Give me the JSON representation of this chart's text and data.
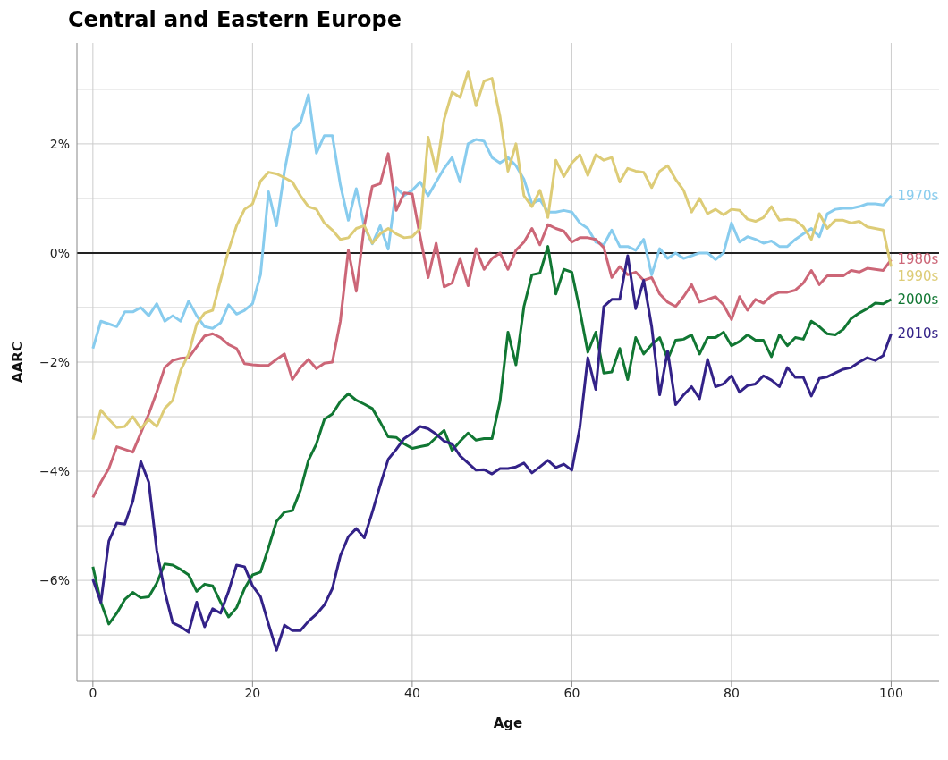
{
  "chart_data": {
    "type": "line",
    "title": "Central and Eastern Europe",
    "xlabel": "Age",
    "ylabel": "AARC",
    "x": [
      0,
      1,
      2,
      3,
      4,
      5,
      6,
      7,
      8,
      9,
      10,
      11,
      12,
      13,
      14,
      15,
      16,
      17,
      18,
      19,
      20,
      21,
      22,
      23,
      24,
      25,
      26,
      27,
      28,
      29,
      30,
      31,
      32,
      33,
      34,
      35,
      36,
      37,
      38,
      39,
      40,
      41,
      42,
      43,
      44,
      45,
      46,
      47,
      48,
      49,
      50,
      51,
      52,
      53,
      54,
      55,
      56,
      57,
      58,
      59,
      60,
      61,
      62,
      63,
      64,
      65,
      66,
      67,
      68,
      69,
      70,
      71,
      72,
      73,
      74,
      75,
      76,
      77,
      78,
      79,
      80,
      81,
      82,
      83,
      84,
      85,
      86,
      87,
      88,
      89,
      90,
      91,
      92,
      93,
      94,
      95,
      96,
      97,
      98,
      99,
      100
    ],
    "xlim": [
      -2,
      106
    ],
    "xticks": [
      0,
      20,
      40,
      60,
      80,
      100
    ],
    "ylim": [
      -7.85,
      3.85
    ],
    "yticks": [
      {
        "value": -7,
        "label": null
      },
      {
        "value": -6,
        "label": "−6%"
      },
      {
        "value": -5,
        "label": null
      },
      {
        "value": -4,
        "label": "−4%"
      },
      {
        "value": -3,
        "label": null
      },
      {
        "value": -2,
        "label": "−2%"
      },
      {
        "value": -1,
        "label": null
      },
      {
        "value": 0,
        "label": "0%"
      },
      {
        "value": 1,
        "label": null
      },
      {
        "value": 2,
        "label": "2%"
      },
      {
        "value": 3,
        "label": null
      }
    ],
    "grid": true,
    "legend": false,
    "ref_lines": [
      {
        "axis": "y",
        "value": 0,
        "color": "#222222"
      }
    ],
    "series": [
      {
        "name": "1970s",
        "color": "#88ccee",
        "values": [
          -1.75,
          -1.25,
          -1.3,
          -1.35,
          -1.08,
          -1.08,
          -1.0,
          -1.15,
          -0.93,
          -1.25,
          -1.15,
          -1.25,
          -0.88,
          -1.15,
          -1.35,
          -1.38,
          -1.28,
          -0.95,
          -1.12,
          -1.05,
          -0.93,
          -0.4,
          1.12,
          0.5,
          1.5,
          2.25,
          2.38,
          2.9,
          1.83,
          2.15,
          2.15,
          1.25,
          0.6,
          1.18,
          0.48,
          0.17,
          0.5,
          0.07,
          1.2,
          1.05,
          1.15,
          1.3,
          1.05,
          1.3,
          1.55,
          1.75,
          1.3,
          2.0,
          2.08,
          2.05,
          1.75,
          1.65,
          1.75,
          1.6,
          1.35,
          0.9,
          0.98,
          0.75,
          0.75,
          0.78,
          0.75,
          0.55,
          0.45,
          0.2,
          0.15,
          0.42,
          0.12,
          0.12,
          0.05,
          0.25,
          -0.4,
          0.08,
          -0.1,
          0.0,
          -0.1,
          -0.05,
          0.0,
          0.0,
          -0.12,
          0.0,
          0.55,
          0.2,
          0.3,
          0.25,
          0.18,
          0.22,
          0.12,
          0.12,
          0.25,
          0.35,
          0.45,
          0.3,
          0.72,
          0.8,
          0.82,
          0.82,
          0.85,
          0.9,
          0.9,
          0.88,
          1.05
        ]
      },
      {
        "name": "1980s",
        "color": "#cc6677",
        "values": [
          -4.48,
          -4.2,
          -3.95,
          -3.55,
          -3.6,
          -3.65,
          -3.3,
          -2.95,
          -2.55,
          -2.1,
          -1.97,
          -1.93,
          -1.92,
          -1.72,
          -1.52,
          -1.48,
          -1.55,
          -1.68,
          -1.75,
          -2.03,
          -2.05,
          -2.06,
          -2.06,
          -1.95,
          -1.85,
          -2.32,
          -2.1,
          -1.95,
          -2.12,
          -2.02,
          -2.0,
          -1.25,
          0.05,
          -0.7,
          0.5,
          1.22,
          1.27,
          1.82,
          0.78,
          1.1,
          1.08,
          0.3,
          -0.45,
          0.18,
          -0.62,
          -0.55,
          -0.1,
          -0.6,
          0.08,
          -0.3,
          -0.1,
          0.0,
          -0.3,
          0.05,
          0.2,
          0.45,
          0.15,
          0.52,
          0.45,
          0.4,
          0.2,
          0.28,
          0.28,
          0.25,
          0.1,
          -0.45,
          -0.25,
          -0.4,
          -0.35,
          -0.5,
          -0.45,
          -0.75,
          -0.9,
          -0.98,
          -0.8,
          -0.58,
          -0.9,
          -0.85,
          -0.8,
          -0.95,
          -1.22,
          -0.8,
          -1.05,
          -0.85,
          -0.92,
          -0.78,
          -0.72,
          -0.72,
          -0.68,
          -0.55,
          -0.32,
          -0.58,
          -0.42,
          -0.42,
          -0.42,
          -0.32,
          -0.35,
          -0.28,
          -0.3,
          -0.32,
          -0.12
        ]
      },
      {
        "name": "1990s",
        "color": "#ddcc77",
        "values": [
          -3.42,
          -2.88,
          -3.05,
          -3.2,
          -3.18,
          -3.0,
          -3.22,
          -3.05,
          -3.18,
          -2.85,
          -2.7,
          -2.15,
          -1.85,
          -1.3,
          -1.1,
          -1.05,
          -0.5,
          0.05,
          0.5,
          0.8,
          0.9,
          1.32,
          1.48,
          1.45,
          1.38,
          1.3,
          1.05,
          0.85,
          0.8,
          0.55,
          0.42,
          0.25,
          0.28,
          0.45,
          0.5,
          0.18,
          0.35,
          0.45,
          0.35,
          0.28,
          0.3,
          0.45,
          2.12,
          1.5,
          2.45,
          2.95,
          2.85,
          3.33,
          2.7,
          3.15,
          3.2,
          2.5,
          1.5,
          2.0,
          1.05,
          0.85,
          1.15,
          0.65,
          1.7,
          1.4,
          1.65,
          1.8,
          1.42,
          1.8,
          1.7,
          1.75,
          1.3,
          1.55,
          1.5,
          1.48,
          1.2,
          1.5,
          1.6,
          1.35,
          1.15,
          0.75,
          1.0,
          0.72,
          0.8,
          0.7,
          0.8,
          0.78,
          0.62,
          0.58,
          0.65,
          0.85,
          0.6,
          0.62,
          0.6,
          0.48,
          0.25,
          0.72,
          0.45,
          0.6,
          0.6,
          0.55,
          0.58,
          0.48,
          0.45,
          0.42,
          -0.25
        ]
      },
      {
        "name": "2000s",
        "color": "#117733",
        "values": [
          -5.75,
          -6.4,
          -6.8,
          -6.6,
          -6.35,
          -6.22,
          -6.32,
          -6.3,
          -6.05,
          -5.7,
          -5.72,
          -5.8,
          -5.9,
          -6.2,
          -6.07,
          -6.1,
          -6.4,
          -6.67,
          -6.5,
          -6.15,
          -5.9,
          -5.85,
          -5.4,
          -4.92,
          -4.75,
          -4.72,
          -4.35,
          -3.8,
          -3.5,
          -3.05,
          -2.95,
          -2.72,
          -2.58,
          -2.7,
          -2.77,
          -2.85,
          -3.1,
          -3.37,
          -3.38,
          -3.5,
          -3.58,
          -3.55,
          -3.52,
          -3.38,
          -3.25,
          -3.62,
          -3.45,
          -3.3,
          -3.43,
          -3.4,
          -3.4,
          -2.72,
          -1.45,
          -2.05,
          -0.98,
          -0.4,
          -0.37,
          0.12,
          -0.75,
          -0.3,
          -0.35,
          -1.05,
          -1.82,
          -1.45,
          -2.2,
          -2.18,
          -1.75,
          -2.32,
          -1.55,
          -1.85,
          -1.68,
          -1.55,
          -1.95,
          -1.6,
          -1.58,
          -1.5,
          -1.85,
          -1.55,
          -1.55,
          -1.45,
          -1.7,
          -1.62,
          -1.5,
          -1.6,
          -1.6,
          -1.9,
          -1.5,
          -1.7,
          -1.55,
          -1.58,
          -1.25,
          -1.35,
          -1.48,
          -1.5,
          -1.4,
          -1.2,
          -1.1,
          -1.02,
          -0.92,
          -0.93,
          -0.85
        ]
      },
      {
        "name": "2010s",
        "color": "#332288",
        "values": [
          -5.98,
          -6.4,
          -5.28,
          -4.95,
          -4.97,
          -4.55,
          -3.82,
          -4.2,
          -5.45,
          -6.2,
          -6.78,
          -6.85,
          -6.95,
          -6.4,
          -6.85,
          -6.52,
          -6.6,
          -6.2,
          -5.72,
          -5.75,
          -6.1,
          -6.3,
          -6.8,
          -7.28,
          -6.82,
          -6.92,
          -6.92,
          -6.75,
          -6.62,
          -6.45,
          -6.15,
          -5.55,
          -5.2,
          -5.05,
          -5.22,
          -4.75,
          -4.25,
          -3.78,
          -3.6,
          -3.4,
          -3.3,
          -3.18,
          -3.22,
          -3.32,
          -3.45,
          -3.5,
          -3.72,
          -3.85,
          -3.98,
          -3.97,
          -4.05,
          -3.95,
          -3.95,
          -3.92,
          -3.85,
          -4.03,
          -3.92,
          -3.8,
          -3.93,
          -3.87,
          -3.98,
          -3.2,
          -1.92,
          -2.5,
          -0.98,
          -0.85,
          -0.85,
          -0.05,
          -1.02,
          -0.5,
          -1.35,
          -2.6,
          -1.8,
          -2.78,
          -2.6,
          -2.45,
          -2.67,
          -1.95,
          -2.45,
          -2.4,
          -2.25,
          -2.55,
          -2.43,
          -2.4,
          -2.25,
          -2.33,
          -2.45,
          -2.1,
          -2.28,
          -2.28,
          -2.62,
          -2.3,
          -2.27,
          -2.2,
          -2.13,
          -2.1,
          -2.0,
          -1.92,
          -1.97,
          -1.88,
          -1.48
        ]
      }
    ]
  }
}
